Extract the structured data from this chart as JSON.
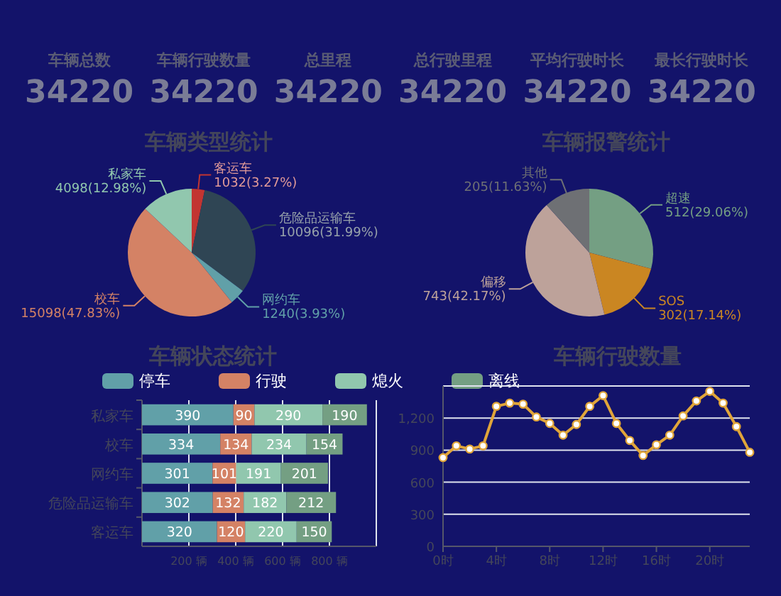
{
  "chart_data": [
    {
      "type": "other",
      "annotations": [
        "车辆总数",
        "34220",
        "车辆行驶数量",
        "34220",
        "总里程",
        "34220",
        "总行驶里程",
        "34220",
        "平均行驶时长",
        "34220",
        "最长行驶时长",
        "34220"
      ]
    },
    {
      "type": "pie",
      "title": "车辆类型统计",
      "categories": [
        "客运车",
        "危险品运输车",
        "网约车",
        "校车",
        "私家车"
      ],
      "values": [
        1032,
        10096,
        1240,
        15098,
        4098
      ],
      "colors": [
        "#c23531",
        "#2f4554",
        "#61a0a8",
        "#d48265",
        "#91c7ae"
      ],
      "value_labels": [
        "1032(3.27%)",
        "10096(31.99%)",
        "1240(3.93%)",
        "15098(47.83%)",
        "4098(12.98%)"
      ]
    },
    {
      "type": "pie",
      "title": "车辆报警统计",
      "categories": [
        "超速",
        "SOS",
        "偏移",
        "其他"
      ],
      "values": [
        512,
        302,
        743,
        205
      ],
      "colors": [
        "#749f83",
        "#ca8622",
        "#bda29a",
        "#6e7074"
      ],
      "value_labels": [
        "512(29.06%)",
        "302(17.14%)",
        "743(42.17%)",
        "205(11.63%)"
      ]
    },
    {
      "type": "bar",
      "title": "车辆状态统计",
      "orientation": "horizontal",
      "stacked": true,
      "categories": [
        "私家车",
        "校车",
        "网约车",
        "危险品运输车",
        "客运车"
      ],
      "series": [
        {
          "name": "停车",
          "color": "#61a0a8",
          "values": [
            390,
            334,
            301,
            302,
            320
          ]
        },
        {
          "name": "行驶",
          "color": "#d48265",
          "values": [
            90,
            134,
            101,
            132,
            120
          ]
        },
        {
          "name": "熄火",
          "color": "#91c7ae",
          "values": [
            290,
            234,
            191,
            182,
            220
          ]
        },
        {
          "name": "离线",
          "color": "#749f83",
          "values": [
            190,
            154,
            201,
            212,
            150
          ]
        }
      ],
      "xlim": [
        0,
        1000
      ],
      "xticks": [
        {
          "value": 0,
          "label": null
        },
        {
          "value": 200,
          "label": "200 辆"
        },
        {
          "value": 400,
          "label": "400 辆"
        },
        {
          "value": 600,
          "label": "600 辆"
        },
        {
          "value": 800,
          "label": "800 辆"
        },
        {
          "value": 1000,
          "label": null
        }
      ],
      "grid": "x",
      "legend": "top",
      "data_labels": true
    },
    {
      "type": "line",
      "title": "车辆行驶数量",
      "categories": [
        "0时",
        null,
        null,
        null,
        "4时",
        null,
        null,
        null,
        "8时",
        null,
        null,
        null,
        "12时",
        null,
        null,
        null,
        "16时",
        null,
        null,
        null,
        "20时",
        null,
        null,
        null
      ],
      "series": [
        {
          "color": "#e0a53a",
          "values": [
            830,
            940,
            910,
            940,
            1310,
            1340,
            1330,
            1210,
            1150,
            1040,
            1140,
            1310,
            1410,
            1150,
            990,
            850,
            950,
            1040,
            1220,
            1360,
            1450,
            1340,
            1120,
            880
          ]
        }
      ],
      "ylim": [
        0,
        1500
      ],
      "yticks": [
        0,
        300,
        600,
        900,
        {
          "value": 1200,
          "label": "1,200"
        },
        {
          "value": 1500,
          "label": null
        }
      ],
      "grid": "y",
      "marker": "circle",
      "line_style": "solid"
    }
  ]
}
